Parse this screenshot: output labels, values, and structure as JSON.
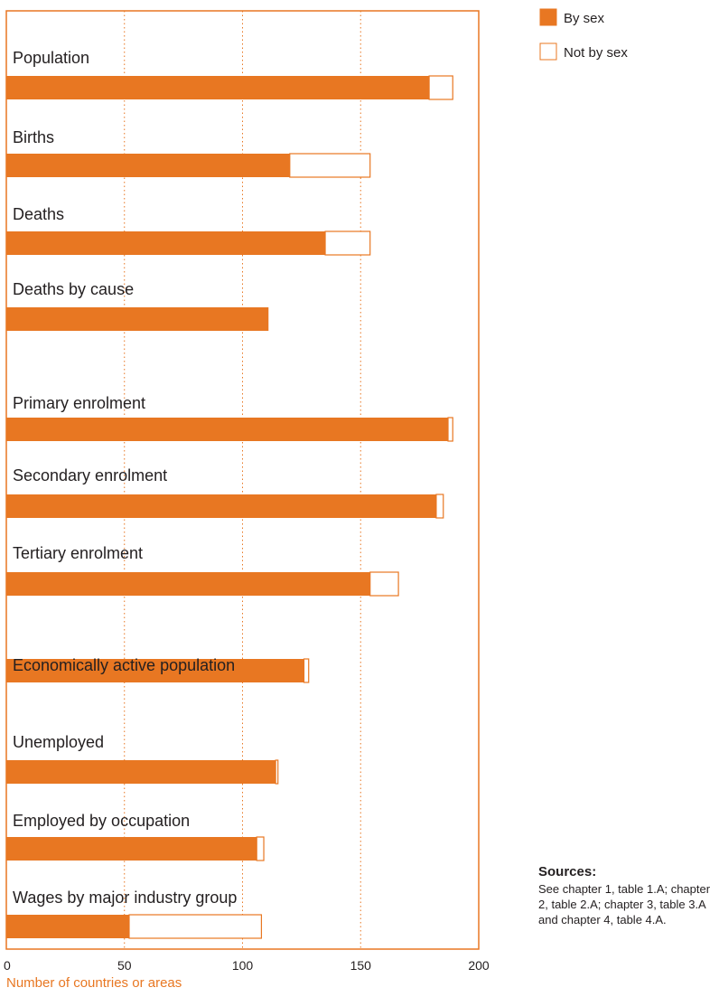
{
  "chart_data": {
    "type": "bar",
    "orientation": "horizontal",
    "stacked": true,
    "categories": [
      "Population",
      "Births",
      "Deaths",
      "Deaths by cause",
      "Primary enrolment",
      "Secondary enrolment",
      "Tertiary enrolment",
      "Economically active population",
      "Unemployed",
      "Employed by occupation",
      "Wages by major industry group"
    ],
    "series": [
      {
        "name": "By sex",
        "values": [
          179,
          120,
          135,
          111,
          187,
          182,
          154,
          126,
          114,
          106,
          52
        ]
      },
      {
        "name": "Not by sex",
        "values": [
          10,
          34,
          19,
          0,
          2,
          3,
          12,
          2,
          1,
          3,
          56
        ]
      }
    ],
    "xlabel": "Number of countries or areas",
    "xlim": [
      0,
      200
    ],
    "xticks": [
      "0",
      "50",
      "100",
      "150",
      "200"
    ],
    "grid": "vertical dotted",
    "legend_position": "top-right",
    "colors": {
      "by_sex": "#e87722",
      "not_by_sex": "#ffffff",
      "frame": "#e87722",
      "grid": "#e87722"
    }
  },
  "sources": {
    "title": "Sources:",
    "text": "See chapter 1, table 1.A; chapter 2, table 2.A; chapter 3, table 3.A and chapter 4, table 4.A."
  }
}
